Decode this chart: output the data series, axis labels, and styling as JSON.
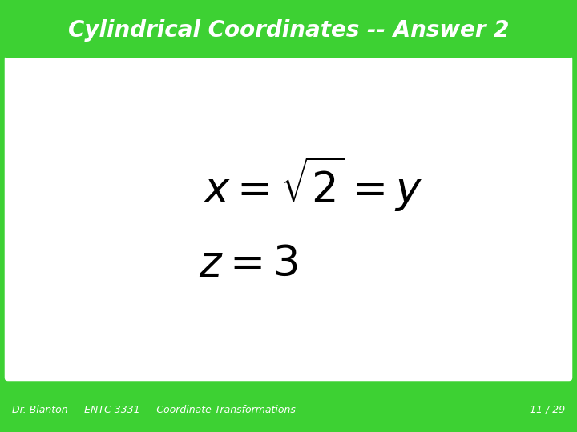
{
  "title": "Cylindrical Coordinates -- Answer 2",
  "title_bg_color": "#3DD133",
  "title_text_color": "#FFFFFF",
  "main_bg_color": "#3DD133",
  "content_bg_color": "#FFFFFF",
  "footer_text": "Dr. Blanton  -  ENTC 3331  -  Coordinate Transformations",
  "footer_page": "11 / 29",
  "eq_color": "#000000",
  "eq1_fontsize": 38,
  "eq2_fontsize": 38,
  "title_fontsize": 20,
  "footer_fontsize": 9
}
